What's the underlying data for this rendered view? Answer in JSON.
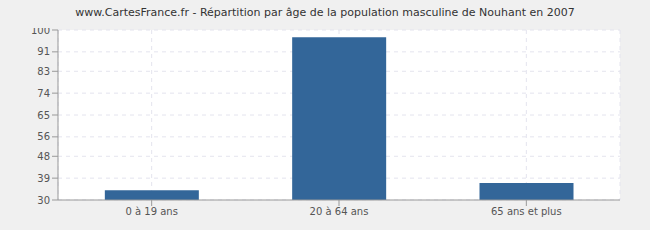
{
  "chart_data": {
    "type": "bar",
    "title": "www.CartesFrance.fr - Répartition par âge de la population masculine de Nouhant en 2007",
    "categories": [
      "0 à 19 ans",
      "20 à 64 ans",
      "65 ans et plus"
    ],
    "values": [
      34,
      97,
      37
    ],
    "color": "#336699",
    "ylim": [
      30,
      100
    ],
    "yticks": [
      30,
      39,
      48,
      56,
      65,
      74,
      83,
      91,
      100
    ],
    "grid": true
  }
}
